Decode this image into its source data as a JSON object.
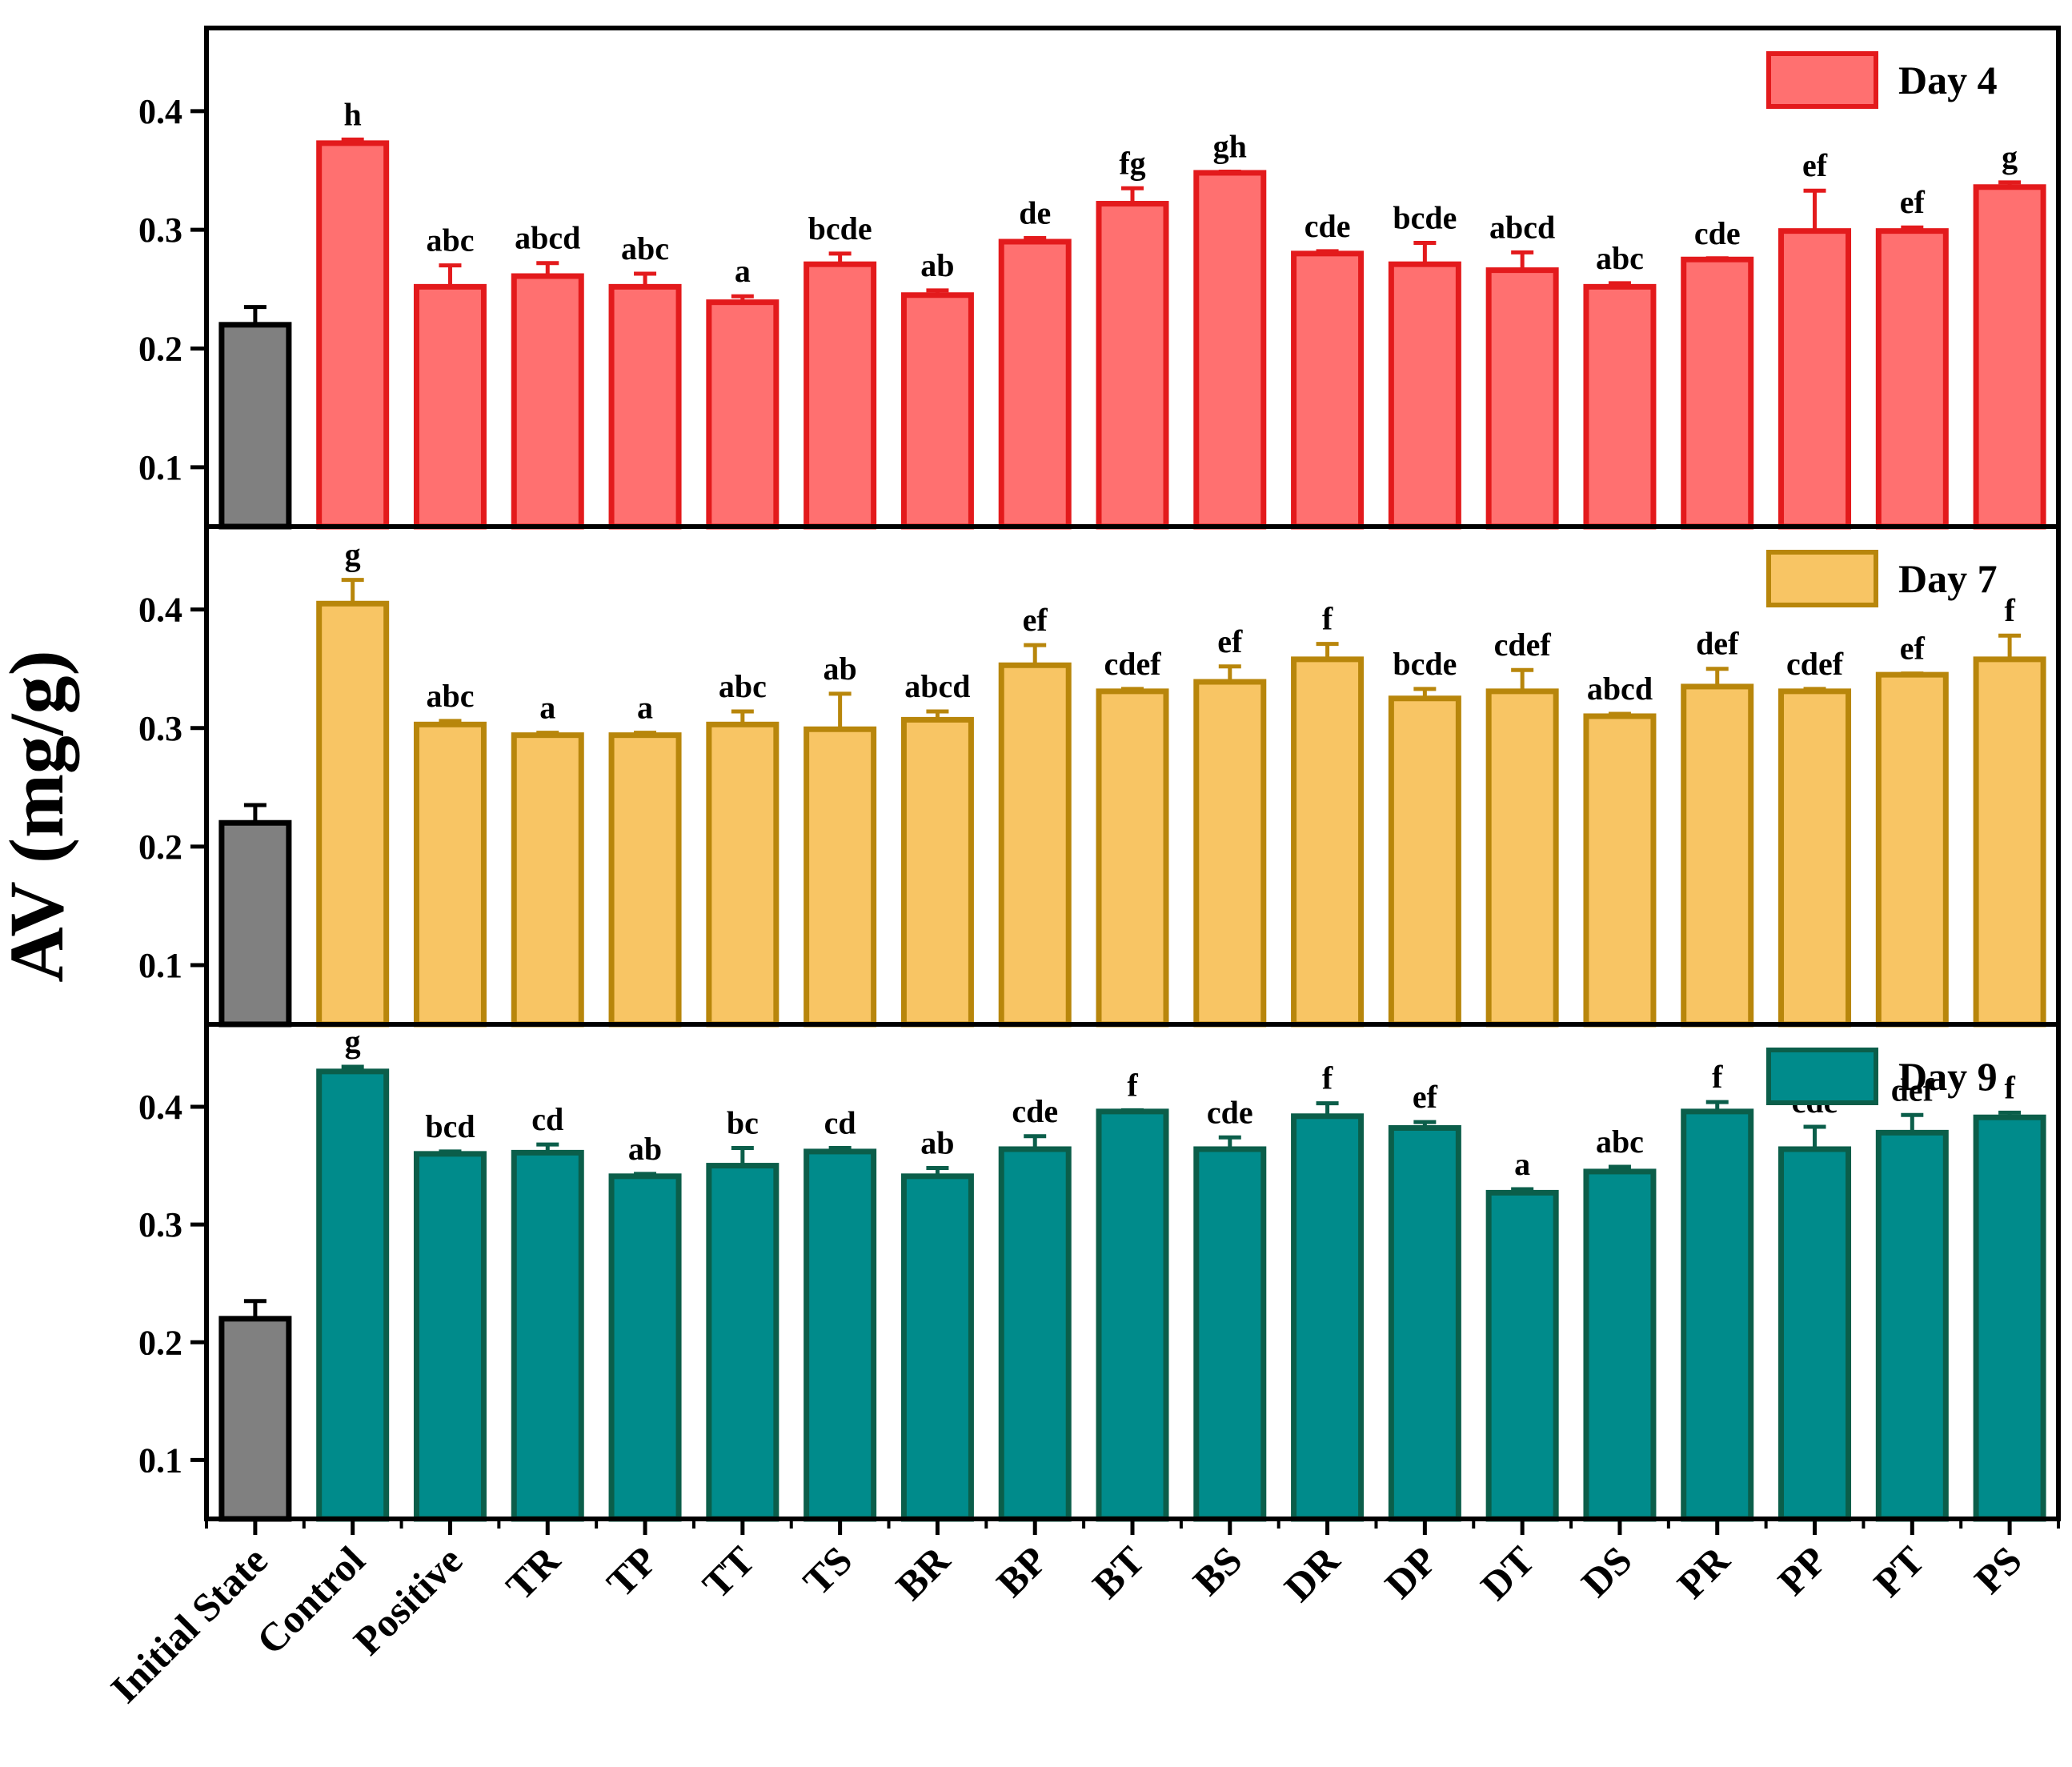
{
  "chart_data": {
    "type": "bar",
    "ylabel": "AV (mg/g)",
    "ylim": [
      0.05,
      0.47
    ],
    "yticks": [
      0.1,
      0.2,
      0.3,
      0.4
    ],
    "ytick_labels": [
      "0.1",
      "0.2",
      "0.3",
      "0.4"
    ],
    "categories": [
      "Initial State",
      "Control",
      "Positive",
      "TR",
      "TP",
      "TT",
      "TS",
      "BR",
      "BP",
      "BT",
      "BS",
      "DR",
      "DP",
      "DT",
      "DS",
      "PR",
      "PP",
      "PT",
      "PS"
    ],
    "initial_color": "#808080",
    "panels": [
      {
        "name": "Day 4",
        "fill": "#FF7070",
        "edge": "#E31A1C",
        "values": [
          0.22,
          0.373,
          0.252,
          0.261,
          0.252,
          0.239,
          0.271,
          0.245,
          0.29,
          0.322,
          0.348,
          0.28,
          0.271,
          0.266,
          0.252,
          0.275,
          0.299,
          0.299,
          0.336
        ],
        "errors": [
          0.015,
          0.003,
          0.018,
          0.011,
          0.011,
          0.005,
          0.009,
          0.004,
          0.003,
          0.013,
          0.001,
          0.002,
          0.018,
          0.015,
          0.003,
          0.001,
          0.034,
          0.003,
          0.004
        ],
        "letters": [
          "",
          "h",
          "abc",
          "abcd",
          "abc",
          "a",
          "bcde",
          "ab",
          "de",
          "fg",
          "gh",
          "cde",
          "bcde",
          "abcd",
          "abc",
          "cde",
          "ef",
          "ef",
          "g"
        ]
      },
      {
        "name": "Day 7",
        "fill": "#F8C564",
        "edge": "#B8860B",
        "values": [
          0.22,
          0.405,
          0.303,
          0.294,
          0.294,
          0.303,
          0.299,
          0.307,
          0.353,
          0.331,
          0.339,
          0.358,
          0.325,
          0.331,
          0.31,
          0.335,
          0.331,
          0.345,
          0.358
        ],
        "errors": [
          0.015,
          0.02,
          0.003,
          0.002,
          0.002,
          0.011,
          0.03,
          0.007,
          0.017,
          0.002,
          0.013,
          0.013,
          0.008,
          0.018,
          0.002,
          0.015,
          0.002,
          0.001,
          0.02
        ],
        "letters": [
          "",
          "g",
          "abc",
          "a",
          "a",
          "abc",
          "ab",
          "abcd",
          "ef",
          "cdef",
          "ef",
          "f",
          "bcde",
          "cdef",
          "abcd",
          "def",
          "cdef",
          "ef",
          "f"
        ]
      },
      {
        "name": "Day 9",
        "fill": "#008B8B",
        "edge": "#0B5E4A",
        "values": [
          0.22,
          0.43,
          0.36,
          0.361,
          0.341,
          0.35,
          0.362,
          0.341,
          0.364,
          0.396,
          0.364,
          0.392,
          0.382,
          0.327,
          0.345,
          0.396,
          0.364,
          0.378,
          0.391
        ],
        "errors": [
          0.015,
          0.004,
          0.002,
          0.007,
          0.002,
          0.015,
          0.003,
          0.007,
          0.011,
          0.001,
          0.01,
          0.011,
          0.005,
          0.003,
          0.004,
          0.008,
          0.019,
          0.015,
          0.004
        ],
        "letters": [
          "",
          "g",
          "bcd",
          "cd",
          "ab",
          "bc",
          "cd",
          "ab",
          "cde",
          "f",
          "cde",
          "f",
          "ef",
          "a",
          "abc",
          "f",
          "cde",
          "def",
          "f"
        ]
      }
    ]
  }
}
